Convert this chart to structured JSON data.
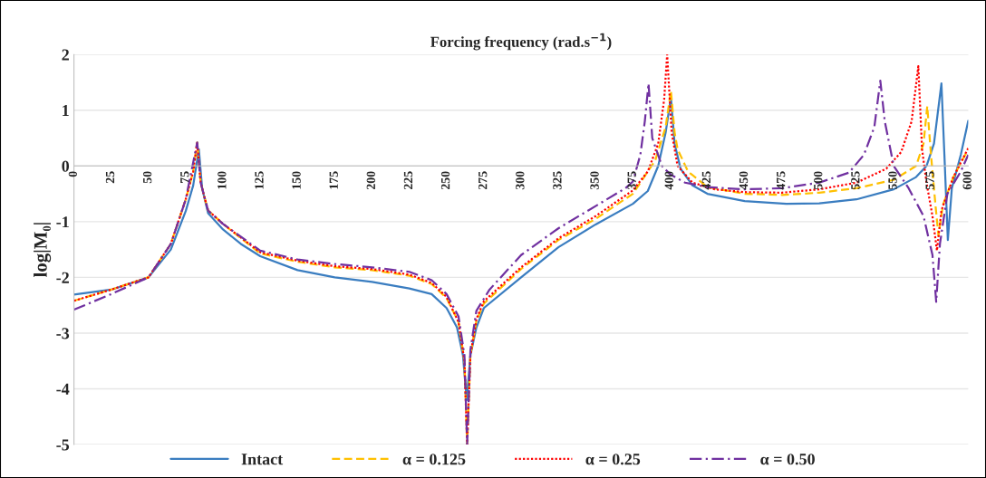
{
  "chart_data": {
    "type": "line",
    "xlabel": "Forcing frequency (rad.s$^{−1}$)",
    "ylabel": "log|M₀|",
    "xlim": [
      0,
      600
    ],
    "xticks": [
      0,
      25,
      50,
      75,
      100,
      125,
      150,
      175,
      200,
      225,
      250,
      275,
      300,
      325,
      350,
      375,
      400,
      425,
      450,
      475,
      500,
      525,
      550,
      575,
      600
    ],
    "ylim": [
      -5,
      2
    ],
    "yticks": [
      -5,
      -4,
      -3,
      -2,
      -1,
      0,
      1,
      2
    ],
    "grid": "y",
    "legend": "bottom",
    "series": [
      {
        "name": "Intact",
        "color": "#3a7dc0",
        "line_style": "solid",
        "x": [
          0,
          25,
          50,
          65,
          75,
          80,
          83.8,
          86,
          90,
          100,
          112,
          125,
          150,
          175,
          200,
          225,
          240,
          250,
          257,
          261,
          263.5,
          266,
          270,
          275,
          300,
          325,
          350,
          375,
          385,
          392,
          397,
          400.5,
          403,
          407,
          415,
          425,
          450,
          478,
          500,
          525,
          550,
          565,
          572,
          577,
          582,
          584,
          586.3,
          589,
          595,
          600
        ],
        "values": [
          -2.31,
          -2.22,
          -2.0,
          -1.5,
          -0.81,
          -0.35,
          0.3,
          -0.4,
          -0.85,
          -1.14,
          -1.4,
          -1.62,
          -1.87,
          -2.0,
          -2.08,
          -2.2,
          -2.3,
          -2.55,
          -2.9,
          -3.4,
          -4.2,
          -3.4,
          -2.9,
          -2.55,
          -2.0,
          -1.46,
          -1.05,
          -0.68,
          -0.45,
          0,
          0.6,
          1.23,
          0.4,
          -0.05,
          -0.35,
          -0.5,
          -0.63,
          -0.68,
          -0.67,
          -0.6,
          -0.42,
          -0.2,
          0,
          0.4,
          1.48,
          0.2,
          -1.33,
          -0.4,
          0.2,
          0.81
        ]
      },
      {
        "name": "α = 0.125",
        "color": "#ffc000",
        "line_style": "dashed",
        "x": [
          0,
          25,
          50,
          65,
          75,
          80,
          82.7,
          85,
          90,
          100,
          125,
          150,
          175,
          200,
          225,
          240,
          250,
          258,
          262,
          263.8,
          266,
          270,
          275,
          300,
          325,
          350,
          375,
          390,
          397,
          400.5,
          403,
          405,
          412,
          425,
          450,
          475,
          500,
          525,
          550,
          565,
          570,
          572.5,
          575,
          578,
          580,
          583,
          590,
          600
        ],
        "values": [
          -2.42,
          -2.22,
          -2.0,
          -1.4,
          -0.6,
          -0.1,
          0.42,
          -0.3,
          -0.8,
          -1.04,
          -1.57,
          -1.72,
          -1.82,
          -1.87,
          -1.97,
          -2.12,
          -2.37,
          -2.8,
          -3.5,
          -5,
          -3.4,
          -2.78,
          -2.47,
          -1.85,
          -1.33,
          -0.95,
          -0.5,
          0.1,
          0.7,
          1.35,
          0.6,
          0.3,
          -0.1,
          -0.38,
          -0.5,
          -0.52,
          -0.48,
          -0.4,
          -0.25,
          0,
          0.4,
          1.07,
          0.2,
          -0.7,
          -1.25,
          -0.7,
          -0.2,
          0.3
        ]
      },
      {
        "name": "α = 0.25",
        "color": "#ff0000",
        "line_style": "dotted",
        "x": [
          0,
          25,
          50,
          65,
          75,
          80,
          82.7,
          85,
          90,
          100,
          125,
          150,
          175,
          200,
          225,
          240,
          250,
          258,
          262,
          263.8,
          266,
          270,
          275,
          300,
          325,
          350,
          375,
          385,
          392,
          396,
          398,
          401,
          405,
          415,
          430,
          450,
          475,
          500,
          525,
          545,
          555,
          562,
          566.5,
          569,
          572,
          576,
          579,
          582,
          590,
          600
        ],
        "values": [
          -2.42,
          -2.22,
          -2.0,
          -1.4,
          -0.6,
          -0.1,
          0.42,
          -0.3,
          -0.8,
          -1.04,
          -1.55,
          -1.7,
          -1.8,
          -1.85,
          -1.95,
          -2.1,
          -2.35,
          -2.8,
          -3.5,
          -5,
          -3.4,
          -2.75,
          -2.43,
          -1.82,
          -1.3,
          -0.9,
          -0.44,
          -0.1,
          0.4,
          1.2,
          2.0,
          0.6,
          0,
          -0.3,
          -0.42,
          -0.47,
          -0.48,
          -0.42,
          -0.3,
          -0.05,
          0.25,
          0.8,
          1.79,
          0.3,
          -0.3,
          -0.9,
          -1.52,
          -0.8,
          -0.2,
          0.32
        ]
      },
      {
        "name": "α = 0.50",
        "color": "#7030a0",
        "line_style": "dashdot",
        "x": [
          0,
          25,
          50,
          65,
          75,
          82.7,
          85,
          90,
          100,
          125,
          150,
          175,
          200,
          225,
          240,
          250,
          258,
          262,
          263.8,
          266,
          270,
          278.8,
          300,
          325,
          350,
          370,
          375,
          380,
          383,
          385.5,
          388,
          394.5,
          400,
          410,
          425,
          450,
          475,
          500,
          520,
          530,
          537,
          541,
          544,
          550,
          560,
          570,
          576,
          578.5,
          581,
          586,
          595,
          600
        ],
        "values": [
          -2.58,
          -2.3,
          -2.0,
          -1.4,
          -0.6,
          0.42,
          -0.3,
          -0.8,
          -1.04,
          -1.52,
          -1.68,
          -1.76,
          -1.82,
          -1.9,
          -2.05,
          -2.3,
          -2.7,
          -3.4,
          -5,
          -3.3,
          -2.6,
          -2.22,
          -1.6,
          -1.12,
          -0.72,
          -0.4,
          -0.28,
          0.2,
          0.8,
          1.48,
          0.5,
          0,
          -0.15,
          -0.3,
          -0.38,
          -0.42,
          -0.4,
          -0.3,
          -0.12,
          0.2,
          0.7,
          1.53,
          0.8,
          0,
          -0.4,
          -0.9,
          -1.6,
          -2.44,
          -1.4,
          -0.5,
          -0.1,
          0.2
        ]
      }
    ]
  }
}
